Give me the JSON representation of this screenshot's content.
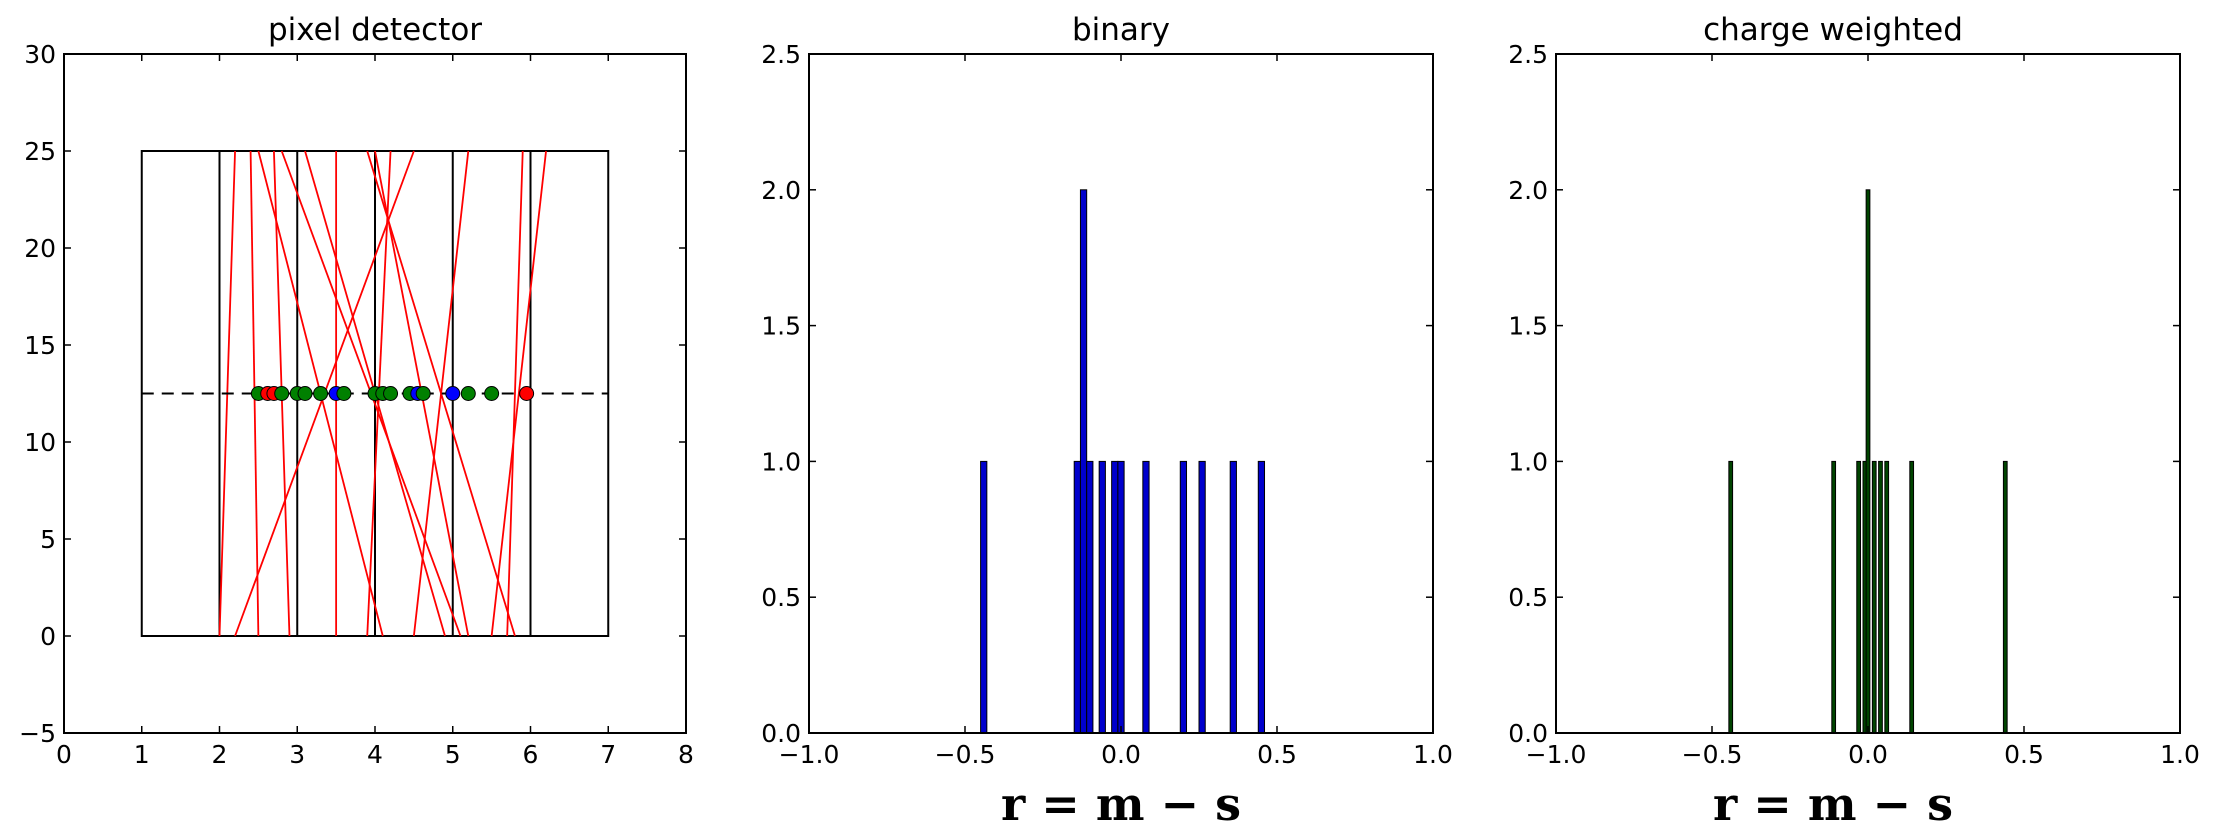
{
  "chart_data": [
    {
      "type": "line",
      "title": "pixel detector",
      "xlim": [
        0,
        8
      ],
      "ylim": [
        -5,
        30
      ],
      "xticks": [
        "0",
        "1",
        "2",
        "3",
        "4",
        "5",
        "6",
        "7",
        "8"
      ],
      "yticks": [
        "−5",
        "0",
        "5",
        "10",
        "15",
        "20",
        "25",
        "30"
      ],
      "grid": false,
      "detector": {
        "outline": {
          "x": [
            1,
            7
          ],
          "y": [
            0,
            25
          ],
          "color": "#000000"
        },
        "pixel_boundaries": [
          2,
          3,
          4,
          5,
          6
        ],
        "midplane_y": 12.5,
        "midplane_style": "dashed"
      },
      "tracks_color": "#ff0000",
      "tracks": [
        {
          "x_top": 2.2,
          "x_bottom": 2.0
        },
        {
          "x_top": 2.4,
          "x_bottom": 2.5
        },
        {
          "x_top": 2.5,
          "x_bottom": 4.1
        },
        {
          "x_top": 2.7,
          "x_bottom": 2.9
        },
        {
          "x_top": 2.8,
          "x_bottom": 5.1
        },
        {
          "x_top": 3.1,
          "x_bottom": 4.9
        },
        {
          "x_top": 3.5,
          "x_bottom": 3.5
        },
        {
          "x_top": 3.9,
          "x_bottom": 5.8
        },
        {
          "x_top": 4.0,
          "x_bottom": 5.2
        },
        {
          "x_top": 4.2,
          "x_bottom": 3.9
        },
        {
          "x_top": 4.5,
          "x_bottom": 2.2
        },
        {
          "x_top": 5.2,
          "x_bottom": 4.5
        },
        {
          "x_top": 5.9,
          "x_bottom": 5.7
        },
        {
          "x_top": 6.2,
          "x_bottom": 5.5
        }
      ],
      "points": [
        {
          "x": 2.5,
          "y": 12.5,
          "color": "#008000"
        },
        {
          "x": 2.62,
          "y": 12.5,
          "color": "#ff0000"
        },
        {
          "x": 2.7,
          "y": 12.5,
          "color": "#ff0000"
        },
        {
          "x": 2.8,
          "y": 12.5,
          "color": "#008000"
        },
        {
          "x": 3.0,
          "y": 12.5,
          "color": "#008000"
        },
        {
          "x": 3.1,
          "y": 12.5,
          "color": "#008000"
        },
        {
          "x": 3.3,
          "y": 12.5,
          "color": "#008000"
        },
        {
          "x": 3.5,
          "y": 12.5,
          "color": "#0000ff"
        },
        {
          "x": 3.6,
          "y": 12.5,
          "color": "#008000"
        },
        {
          "x": 4.0,
          "y": 12.5,
          "color": "#008000"
        },
        {
          "x": 4.1,
          "y": 12.5,
          "color": "#008000"
        },
        {
          "x": 4.2,
          "y": 12.5,
          "color": "#008000"
        },
        {
          "x": 4.45,
          "y": 12.5,
          "color": "#008000"
        },
        {
          "x": 4.55,
          "y": 12.5,
          "color": "#0000ff"
        },
        {
          "x": 4.62,
          "y": 12.5,
          "color": "#008000"
        },
        {
          "x": 5.0,
          "y": 12.5,
          "color": "#0000ff"
        },
        {
          "x": 5.2,
          "y": 12.5,
          "color": "#008000"
        },
        {
          "x": 5.5,
          "y": 12.5,
          "color": "#008000"
        },
        {
          "x": 5.95,
          "y": 12.5,
          "color": "#ff0000"
        }
      ]
    },
    {
      "type": "bar",
      "title": "binary",
      "xlabel": "r = m − s",
      "xlim": [
        -1.0,
        1.0
      ],
      "ylim": [
        0.0,
        2.5
      ],
      "xticks": [
        "−1.0",
        "−0.5",
        "0.0",
        "0.5",
        "1.0"
      ],
      "yticks": [
        "0.0",
        "0.5",
        "1.0",
        "1.5",
        "2.0",
        "2.5"
      ],
      "bar_width": 0.02,
      "color": "#0000cc",
      "x": [
        -0.44,
        -0.14,
        -0.12,
        -0.1,
        -0.06,
        -0.02,
        0.0,
        0.08,
        0.2,
        0.26,
        0.36,
        0.45
      ],
      "values": [
        1,
        1,
        2,
        1,
        1,
        1,
        1,
        1,
        1,
        1,
        1,
        1
      ]
    },
    {
      "type": "bar",
      "title": "charge weighted",
      "xlabel": "r = m − s",
      "xlim": [
        -1.0,
        1.0
      ],
      "ylim": [
        0.0,
        2.5
      ],
      "xticks": [
        "−1.0",
        "−0.5",
        "0.0",
        "0.5",
        "1.0"
      ],
      "yticks": [
        "0.0",
        "0.5",
        "1.0",
        "1.5",
        "2.0",
        "2.5"
      ],
      "bar_width": 0.012,
      "color": "#004400",
      "x": [
        -0.44,
        -0.11,
        -0.03,
        -0.01,
        0.0,
        0.02,
        0.04,
        0.06,
        0.14,
        0.44
      ],
      "values": [
        1,
        1,
        1,
        1,
        2,
        1,
        1,
        1,
        1,
        1
      ]
    }
  ]
}
